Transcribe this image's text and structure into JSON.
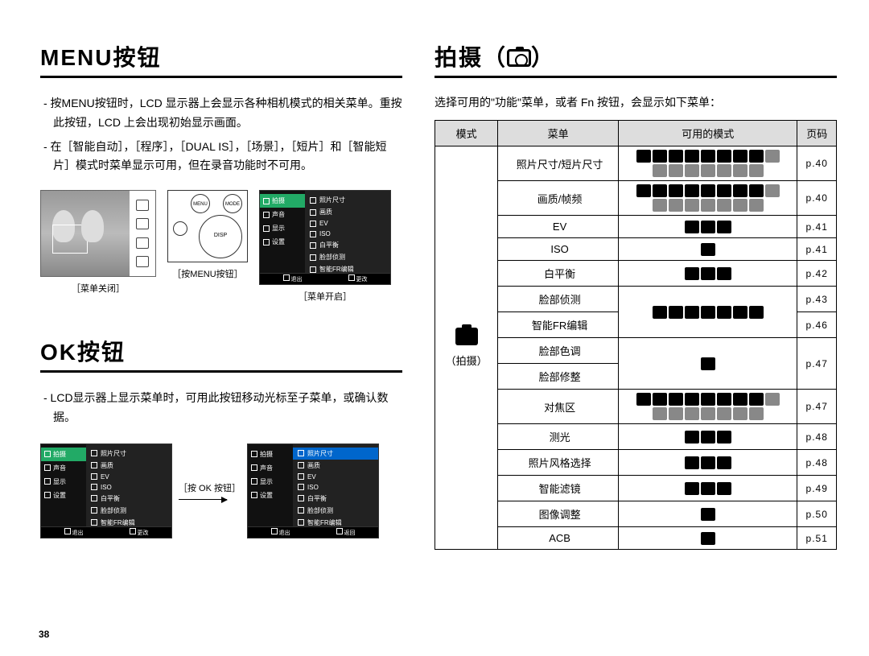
{
  "left": {
    "menu_title": "MENU按钮",
    "menu_p1": "- 按MENU按钮时，LCD 显示器上会显示各种相机模式的相关菜单。重按此按钮，LCD 上会出现初始显示画面。",
    "menu_p2": "- 在［智能自动］，［程序］，［DUAL IS］，［场景］，［短片］和［智能短片］模式时菜单显示可用，但在录音功能时不可用。",
    "fig1_cap": "［菜单关闭］",
    "fig2_cap": "［按MENU按钮］",
    "fig3_cap": "［菜单开启］",
    "menu_left_items": [
      "拍摄",
      "声音",
      "显示",
      "设置"
    ],
    "menu_right_items": [
      "照片尺寸",
      "画质",
      "EV",
      "ISO",
      "白平衡",
      "脸部侦测",
      "智能FR编辑"
    ],
    "menu_bottom_left": "退出",
    "menu_bottom_right": "更改",
    "cam_menu": "MENU",
    "cam_mode": "MODE",
    "ok_title": "OK按钮",
    "ok_p1": "- LCD显示器上显示菜单时，可用此按钮移动光标至子菜单，或确认数据。",
    "ok_btn_label": "［按 OK 按钮］",
    "ok_right_bottom_right": "返回"
  },
  "right": {
    "title_pre": "拍摄（",
    "title_post": "）",
    "intro": "选择可用的\"功能\"菜单，或者 Fn 按钮，会显示如下菜单：",
    "th_mode": "模式",
    "th_menu": "菜单",
    "th_avail": "可用的模式",
    "th_page": "页码",
    "mode_label": "（拍摄）",
    "rows": [
      {
        "menu": "照片尺寸/短片尺寸",
        "icons": 16,
        "page": "p.40"
      },
      {
        "menu": "画质/帧频",
        "icons": 16,
        "page": "p.40"
      },
      {
        "menu": "EV",
        "icons": 3,
        "page": "p.41"
      },
      {
        "menu": "ISO",
        "icons": 1,
        "page": "p.41"
      },
      {
        "menu": "白平衡",
        "icons": 3,
        "page": "p.42"
      },
      {
        "menu": "脸部侦测",
        "icons": 7,
        "page": "p.43",
        "merge_down": true
      },
      {
        "menu": "智能FR编辑",
        "page": "p.46",
        "merged": true
      },
      {
        "menu": "脸部色调",
        "icons": 1,
        "page": "p.47",
        "merge_down": true
      },
      {
        "menu": "脸部修整",
        "merged": true
      },
      {
        "menu": "对焦区",
        "icons": 16,
        "page": "p.47"
      },
      {
        "menu": "测光",
        "icons": 3,
        "page": "p.48"
      },
      {
        "menu": "照片风格选择",
        "icons": 3,
        "page": "p.48"
      },
      {
        "menu": "智能滤镜",
        "icons": 3,
        "page": "p.49"
      },
      {
        "menu": "图像调整",
        "icons": 1,
        "page": "p.50"
      },
      {
        "menu": "ACB",
        "icons": 1,
        "page": "p.51"
      }
    ]
  },
  "pagenum": "38"
}
